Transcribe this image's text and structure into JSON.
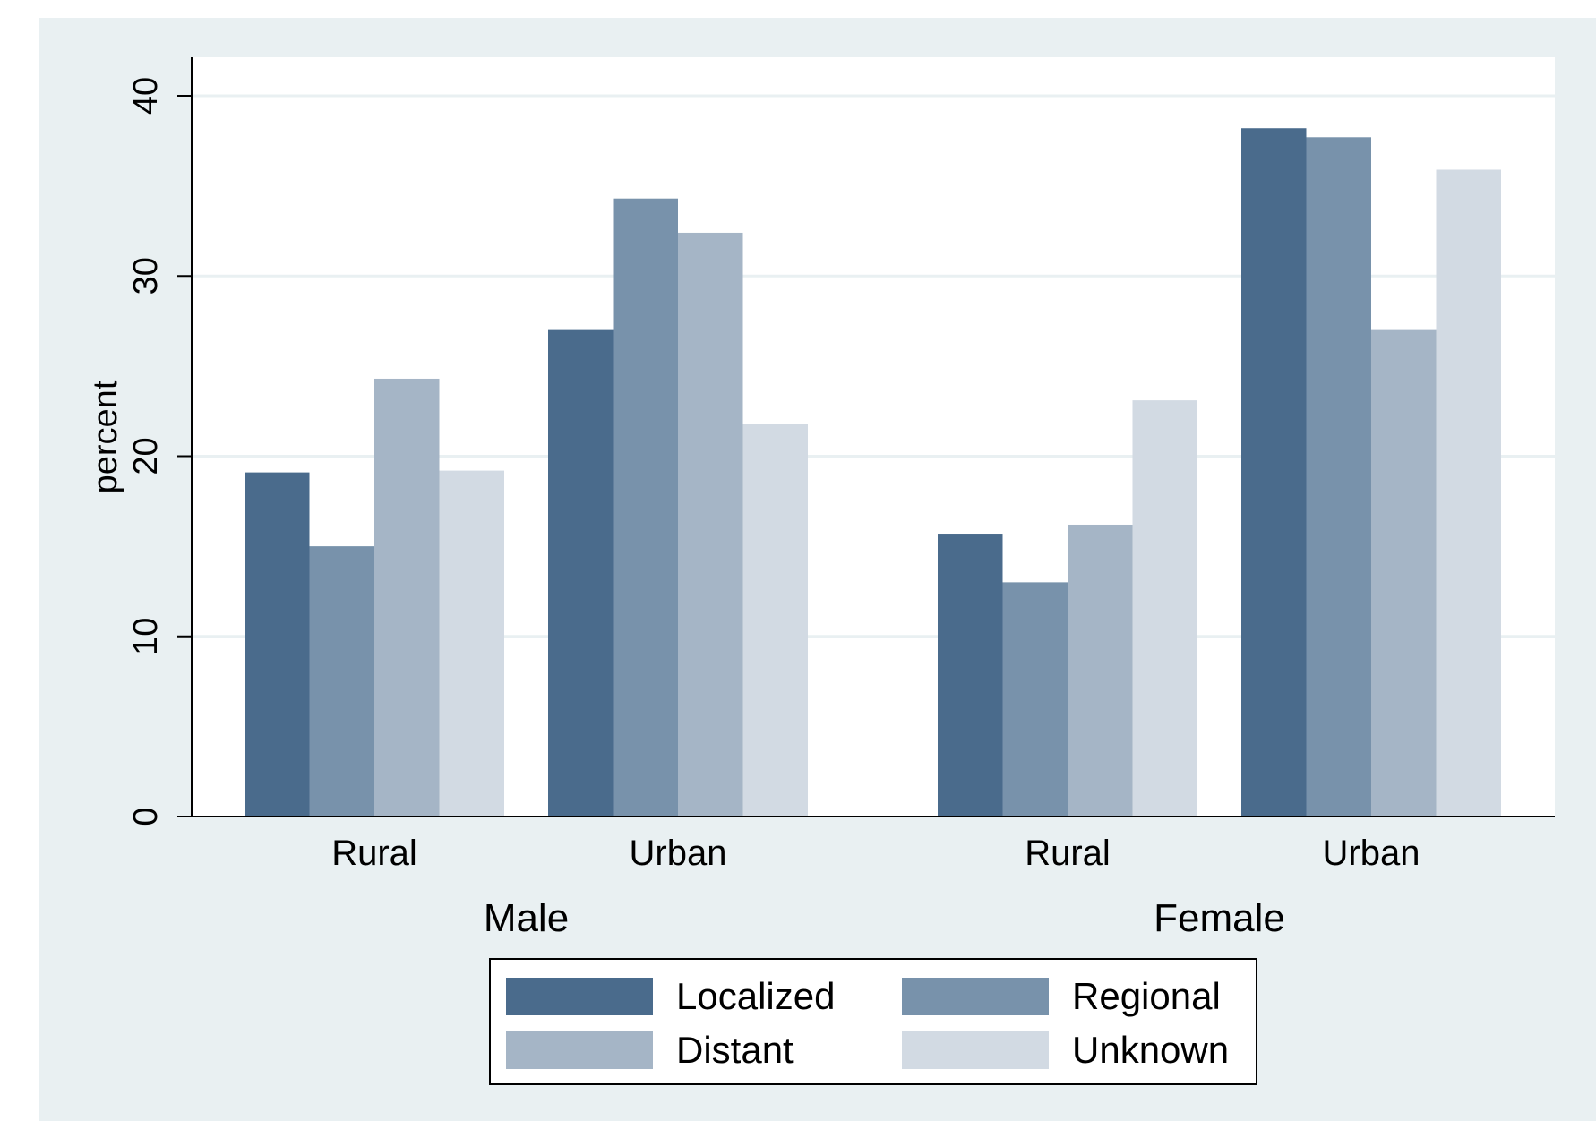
{
  "chart_data": {
    "type": "bar",
    "ylabel": "percent",
    "ylim": [
      0,
      42
    ],
    "yticks": [
      0,
      10,
      20,
      30,
      40
    ],
    "grid": true,
    "legend_position": "bottom",
    "groups": [
      {
        "label": "Male",
        "categories": [
          "Rural",
          "Urban"
        ]
      },
      {
        "label": "Female",
        "categories": [
          "Rural",
          "Urban"
        ]
      }
    ],
    "series": [
      {
        "name": "Localized",
        "color": "#4a6b8c",
        "values": [
          19.1,
          27.0,
          15.7,
          38.2
        ]
      },
      {
        "name": "Regional",
        "color": "#7892ab",
        "values": [
          15.0,
          34.3,
          13.0,
          37.7
        ]
      },
      {
        "name": "Distant",
        "color": "#a5b5c6",
        "values": [
          24.3,
          32.4,
          16.2,
          27.0
        ]
      },
      {
        "name": "Unknown",
        "color": "#d2dae3",
        "values": [
          19.2,
          21.8,
          23.1,
          35.9
        ]
      }
    ],
    "colors": {
      "background": "#e9f0f2",
      "plot": "#ffffff",
      "grid": "#e9f0f2"
    }
  }
}
